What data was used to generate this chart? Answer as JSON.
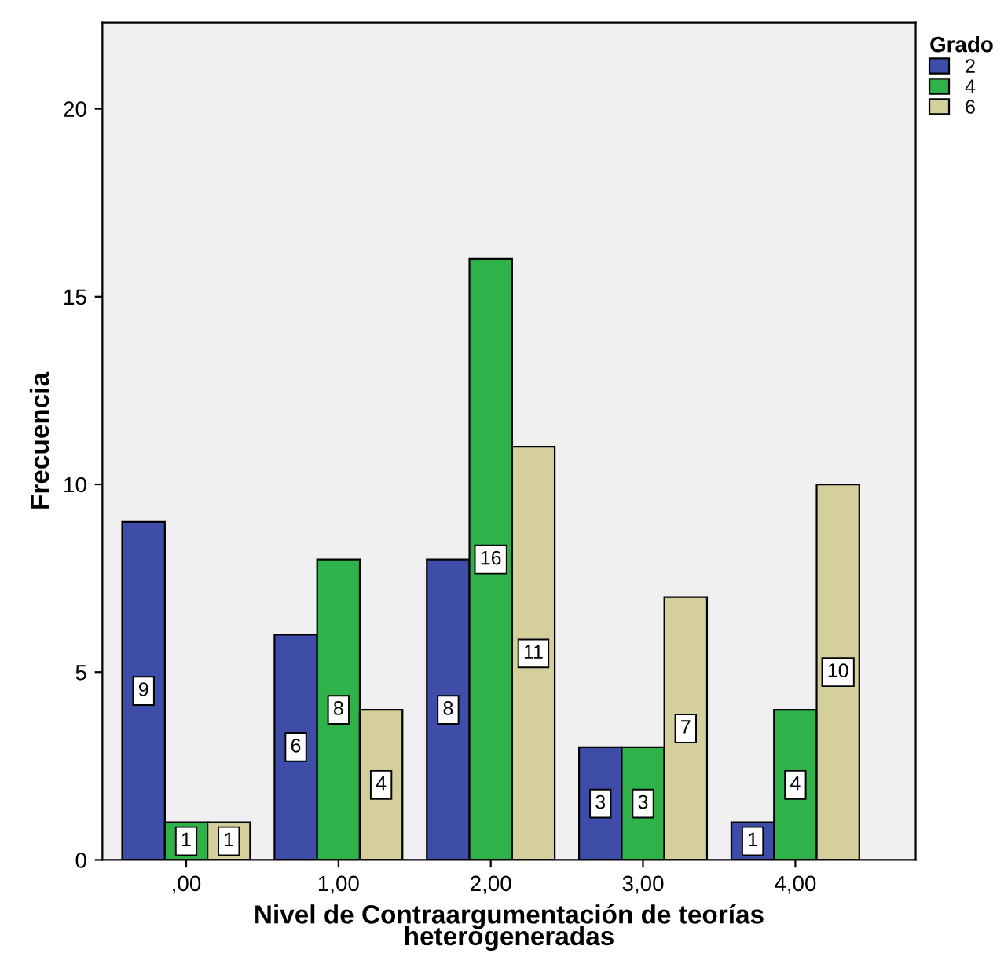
{
  "chart_data": {
    "type": "bar",
    "xlabel": "Nivel de Contraargumentación de teorías\nheterogeneradas",
    "ylabel": "Frecuencia",
    "legend_title": "Grado",
    "categories": [
      ",00",
      "1,00",
      "2,00",
      "3,00",
      "4,00"
    ],
    "series": [
      {
        "name": "2",
        "color": "#3e4ea8",
        "values": [
          9,
          6,
          8,
          3,
          1
        ]
      },
      {
        "name": "4",
        "color": "#2fb24a",
        "values": [
          1,
          8,
          16,
          3,
          4
        ]
      },
      {
        "name": "6",
        "color": "#d5cf9b",
        "values": [
          1,
          4,
          11,
          7,
          10
        ]
      }
    ],
    "ylim": [
      0,
      22.3
    ],
    "yticks": [
      0,
      5,
      10,
      15,
      20
    ],
    "grid": false,
    "legend": "top right",
    "data_labels": true
  }
}
